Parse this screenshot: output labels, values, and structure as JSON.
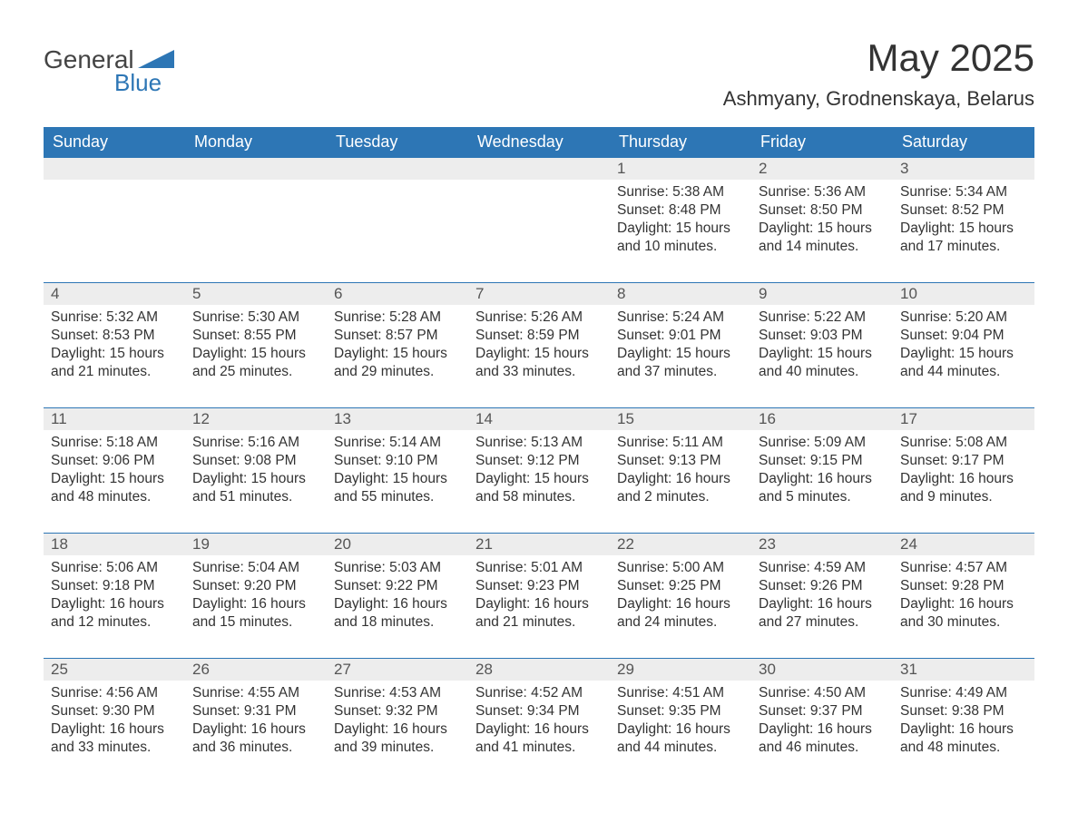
{
  "logo": {
    "text1": "General",
    "text2": "Blue"
  },
  "title": "May 2025",
  "location": "Ashmyany, Grodnenskaya, Belarus",
  "colors": {
    "header_bg": "#2d76b5",
    "header_text": "#ffffff",
    "daynum_bg": "#ededed",
    "daynum_text": "#555555",
    "body_text": "#333333",
    "row_border": "#2d76b5",
    "page_bg": "#ffffff",
    "logo_accent": "#2d76b5"
  },
  "fonts": {
    "title_size_pt": 32,
    "location_size_pt": 17,
    "header_size_pt": 14,
    "daynum_size_pt": 13,
    "body_size_pt": 12
  },
  "weekdays": [
    "Sunday",
    "Monday",
    "Tuesday",
    "Wednesday",
    "Thursday",
    "Friday",
    "Saturday"
  ],
  "weeks": [
    [
      null,
      null,
      null,
      null,
      {
        "n": "1",
        "sr": "Sunrise: 5:38 AM",
        "ss": "Sunset: 8:48 PM",
        "d1": "Daylight: 15 hours",
        "d2": "and 10 minutes."
      },
      {
        "n": "2",
        "sr": "Sunrise: 5:36 AM",
        "ss": "Sunset: 8:50 PM",
        "d1": "Daylight: 15 hours",
        "d2": "and 14 minutes."
      },
      {
        "n": "3",
        "sr": "Sunrise: 5:34 AM",
        "ss": "Sunset: 8:52 PM",
        "d1": "Daylight: 15 hours",
        "d2": "and 17 minutes."
      }
    ],
    [
      {
        "n": "4",
        "sr": "Sunrise: 5:32 AM",
        "ss": "Sunset: 8:53 PM",
        "d1": "Daylight: 15 hours",
        "d2": "and 21 minutes."
      },
      {
        "n": "5",
        "sr": "Sunrise: 5:30 AM",
        "ss": "Sunset: 8:55 PM",
        "d1": "Daylight: 15 hours",
        "d2": "and 25 minutes."
      },
      {
        "n": "6",
        "sr": "Sunrise: 5:28 AM",
        "ss": "Sunset: 8:57 PM",
        "d1": "Daylight: 15 hours",
        "d2": "and 29 minutes."
      },
      {
        "n": "7",
        "sr": "Sunrise: 5:26 AM",
        "ss": "Sunset: 8:59 PM",
        "d1": "Daylight: 15 hours",
        "d2": "and 33 minutes."
      },
      {
        "n": "8",
        "sr": "Sunrise: 5:24 AM",
        "ss": "Sunset: 9:01 PM",
        "d1": "Daylight: 15 hours",
        "d2": "and 37 minutes."
      },
      {
        "n": "9",
        "sr": "Sunrise: 5:22 AM",
        "ss": "Sunset: 9:03 PM",
        "d1": "Daylight: 15 hours",
        "d2": "and 40 minutes."
      },
      {
        "n": "10",
        "sr": "Sunrise: 5:20 AM",
        "ss": "Sunset: 9:04 PM",
        "d1": "Daylight: 15 hours",
        "d2": "and 44 minutes."
      }
    ],
    [
      {
        "n": "11",
        "sr": "Sunrise: 5:18 AM",
        "ss": "Sunset: 9:06 PM",
        "d1": "Daylight: 15 hours",
        "d2": "and 48 minutes."
      },
      {
        "n": "12",
        "sr": "Sunrise: 5:16 AM",
        "ss": "Sunset: 9:08 PM",
        "d1": "Daylight: 15 hours",
        "d2": "and 51 minutes."
      },
      {
        "n": "13",
        "sr": "Sunrise: 5:14 AM",
        "ss": "Sunset: 9:10 PM",
        "d1": "Daylight: 15 hours",
        "d2": "and 55 minutes."
      },
      {
        "n": "14",
        "sr": "Sunrise: 5:13 AM",
        "ss": "Sunset: 9:12 PM",
        "d1": "Daylight: 15 hours",
        "d2": "and 58 minutes."
      },
      {
        "n": "15",
        "sr": "Sunrise: 5:11 AM",
        "ss": "Sunset: 9:13 PM",
        "d1": "Daylight: 16 hours",
        "d2": "and 2 minutes."
      },
      {
        "n": "16",
        "sr": "Sunrise: 5:09 AM",
        "ss": "Sunset: 9:15 PM",
        "d1": "Daylight: 16 hours",
        "d2": "and 5 minutes."
      },
      {
        "n": "17",
        "sr": "Sunrise: 5:08 AM",
        "ss": "Sunset: 9:17 PM",
        "d1": "Daylight: 16 hours",
        "d2": "and 9 minutes."
      }
    ],
    [
      {
        "n": "18",
        "sr": "Sunrise: 5:06 AM",
        "ss": "Sunset: 9:18 PM",
        "d1": "Daylight: 16 hours",
        "d2": "and 12 minutes."
      },
      {
        "n": "19",
        "sr": "Sunrise: 5:04 AM",
        "ss": "Sunset: 9:20 PM",
        "d1": "Daylight: 16 hours",
        "d2": "and 15 minutes."
      },
      {
        "n": "20",
        "sr": "Sunrise: 5:03 AM",
        "ss": "Sunset: 9:22 PM",
        "d1": "Daylight: 16 hours",
        "d2": "and 18 minutes."
      },
      {
        "n": "21",
        "sr": "Sunrise: 5:01 AM",
        "ss": "Sunset: 9:23 PM",
        "d1": "Daylight: 16 hours",
        "d2": "and 21 minutes."
      },
      {
        "n": "22",
        "sr": "Sunrise: 5:00 AM",
        "ss": "Sunset: 9:25 PM",
        "d1": "Daylight: 16 hours",
        "d2": "and 24 minutes."
      },
      {
        "n": "23",
        "sr": "Sunrise: 4:59 AM",
        "ss": "Sunset: 9:26 PM",
        "d1": "Daylight: 16 hours",
        "d2": "and 27 minutes."
      },
      {
        "n": "24",
        "sr": "Sunrise: 4:57 AM",
        "ss": "Sunset: 9:28 PM",
        "d1": "Daylight: 16 hours",
        "d2": "and 30 minutes."
      }
    ],
    [
      {
        "n": "25",
        "sr": "Sunrise: 4:56 AM",
        "ss": "Sunset: 9:30 PM",
        "d1": "Daylight: 16 hours",
        "d2": "and 33 minutes."
      },
      {
        "n": "26",
        "sr": "Sunrise: 4:55 AM",
        "ss": "Sunset: 9:31 PM",
        "d1": "Daylight: 16 hours",
        "d2": "and 36 minutes."
      },
      {
        "n": "27",
        "sr": "Sunrise: 4:53 AM",
        "ss": "Sunset: 9:32 PM",
        "d1": "Daylight: 16 hours",
        "d2": "and 39 minutes."
      },
      {
        "n": "28",
        "sr": "Sunrise: 4:52 AM",
        "ss": "Sunset: 9:34 PM",
        "d1": "Daylight: 16 hours",
        "d2": "and 41 minutes."
      },
      {
        "n": "29",
        "sr": "Sunrise: 4:51 AM",
        "ss": "Sunset: 9:35 PM",
        "d1": "Daylight: 16 hours",
        "d2": "and 44 minutes."
      },
      {
        "n": "30",
        "sr": "Sunrise: 4:50 AM",
        "ss": "Sunset: 9:37 PM",
        "d1": "Daylight: 16 hours",
        "d2": "and 46 minutes."
      },
      {
        "n": "31",
        "sr": "Sunrise: 4:49 AM",
        "ss": "Sunset: 9:38 PM",
        "d1": "Daylight: 16 hours",
        "d2": "and 48 minutes."
      }
    ]
  ]
}
